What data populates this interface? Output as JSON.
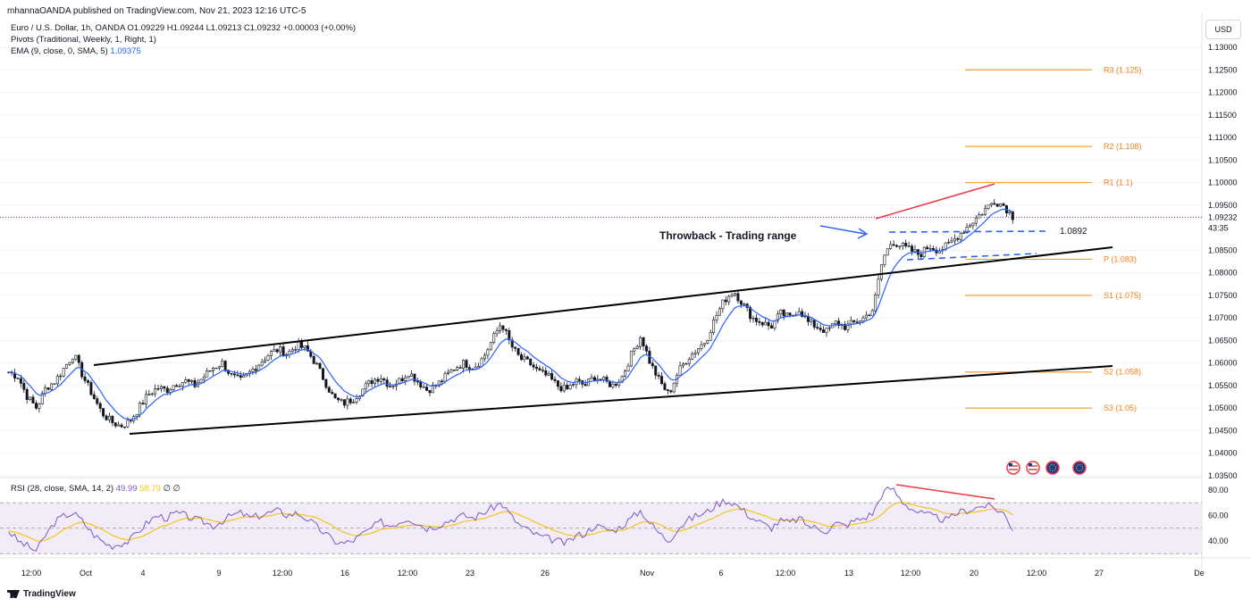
{
  "header": {
    "published": "mhannaOANDA published on TradingView.com, Nov 21, 2023 12:16 UTC-5"
  },
  "legend": {
    "symbol_line": "Euro / U.S. Dollar, 1h, OANDA  O1.09229  H1.09244  L1.09213  C1.09232  +0.00003 (+0.00%)",
    "pivots": "Pivots (Traditional, Weekly, 1, Right, 1)",
    "ema_label": "EMA (9, close, 0, SMA, 5)",
    "ema_value": "1.09375",
    "rsi_label": "RSI (28, close, SMA, 14, 2)",
    "rsi_value1": "49.99",
    "rsi_value2": "58.79",
    "rsi_extra": "∅ ∅"
  },
  "currency": "USD",
  "price_axis": {
    "range": [
      1.035,
      1.1335
    ],
    "ticks": [
      "1.13000",
      "1.12500",
      "1.12000",
      "1.11500",
      "1.11000",
      "1.10500",
      "1.10000",
      "1.09500",
      "1.08500",
      "1.08000",
      "1.07500",
      "1.07000",
      "1.06500",
      "1.06000",
      "1.05500",
      "1.05000",
      "1.04500",
      "1.04000",
      "1.03500"
    ],
    "last_price": "1.09232",
    "countdown": "43:35"
  },
  "rsi_axis": {
    "ticks": [
      "80.00",
      "60.00",
      "40.00"
    ],
    "upper_band": 70,
    "lower_band": 30,
    "mid": 50
  },
  "time_axis": [
    "12:00",
    "Oct",
    "4",
    "9",
    "12:00",
    "16",
    "12:00",
    "23",
    "26",
    "Nov",
    "6",
    "12:00",
    "13",
    "12:00",
    "20",
    "12:00",
    "27",
    "De"
  ],
  "annotations": {
    "throwback": "Throwback - Trading range",
    "level": "1.0892"
  },
  "chart_data": {
    "type": "candlestick",
    "symbol": "Euro / U.S. Dollar",
    "interval": "1h",
    "pivots": [
      {
        "label": "R3 (1.125)",
        "value": 1.125
      },
      {
        "label": "R2 (1.108)",
        "value": 1.108
      },
      {
        "label": "R1 (1.1)",
        "value": 1.1
      },
      {
        "label": "P (1.083)",
        "value": 1.083
      },
      {
        "label": "S1 (1.075)",
        "value": 1.075
      },
      {
        "label": "S2 (1.058)",
        "value": 1.058
      },
      {
        "label": "S3 (1.05)",
        "value": 1.05
      }
    ],
    "price_path": [
      1.058,
      1.057,
      1.0525,
      1.05,
      1.0545,
      1.056,
      1.059,
      1.062,
      1.057,
      1.053,
      1.049,
      1.047,
      1.046,
      1.047,
      1.05,
      1.053,
      1.0545,
      1.054,
      1.0555,
      1.056,
      1.055,
      1.057,
      1.059,
      1.06,
      1.057,
      1.056,
      1.058,
      1.06,
      1.062,
      1.063,
      1.062,
      1.064,
      1.063,
      1.06,
      1.056,
      1.052,
      1.051,
      1.052,
      1.054,
      1.056,
      1.057,
      1.055,
      1.056,
      1.058,
      1.056,
      1.054,
      1.055,
      1.057,
      1.059,
      1.06,
      1.059,
      1.061,
      1.065,
      1.069,
      1.064,
      1.061,
      1.06,
      1.058,
      1.057,
      1.055,
      1.054,
      1.056,
      1.055,
      1.057,
      1.056,
      1.055,
      1.057,
      1.062,
      1.066,
      1.06,
      1.056,
      1.053,
      1.058,
      1.061,
      1.063,
      1.065,
      1.07,
      1.074,
      1.076,
      1.073,
      1.07,
      1.069,
      1.068,
      1.071,
      1.07,
      1.072,
      1.069,
      1.068,
      1.067,
      1.069,
      1.068,
      1.069,
      1.07,
      1.072,
      1.083,
      1.087,
      1.086,
      1.085,
      1.084,
      1.086,
      1.085,
      1.086,
      1.088,
      1.09,
      1.092,
      1.094,
      1.096,
      1.095,
      1.0925
    ],
    "ema_period": 9,
    "rsi_path": [
      48,
      40,
      36,
      32,
      45,
      55,
      60,
      62,
      55,
      46,
      40,
      36,
      38,
      40,
      48,
      55,
      60,
      58,
      62,
      60,
      57,
      55,
      52,
      56,
      60,
      62,
      58,
      60,
      62,
      64,
      60,
      62,
      58,
      52,
      46,
      40,
      38,
      40,
      45,
      50,
      55,
      52,
      55,
      58,
      54,
      50,
      52,
      55,
      58,
      60,
      58,
      62,
      66,
      70,
      60,
      52,
      48,
      44,
      42,
      40,
      38,
      44,
      46,
      52,
      50,
      48,
      52,
      58,
      64,
      54,
      46,
      40,
      50,
      56,
      60,
      62,
      68,
      72,
      70,
      64,
      58,
      54,
      50,
      56,
      54,
      58,
      52,
      50,
      48,
      54,
      52,
      56,
      58,
      62,
      78,
      82,
      72,
      66,
      62,
      60,
      58,
      56,
      62,
      64,
      66,
      68,
      66,
      62,
      50
    ],
    "trendlines": [
      {
        "name": "channel-upper",
        "points": [
          [
            1.0595,
            "Oct 2"
          ],
          [
            1.086,
            "Nov 27"
          ]
        ]
      },
      {
        "name": "channel-lower",
        "points": [
          [
            1.0445,
            "Oct 3"
          ],
          [
            1.059,
            "Nov 27"
          ]
        ]
      }
    ]
  },
  "colors": {
    "candle": "#131722",
    "ema": "#2962ff",
    "pivot": "#f7a32a",
    "pivot_text": "#f57f17",
    "divergence": "#f23645",
    "arrow": "#2962ff",
    "rsi_line": "#7e57c2",
    "rsi_signal": "#f5c518",
    "rsi_band": "#ede7f6",
    "last_price_line": "#9c27b0"
  },
  "icons": [
    "flag-us-icon",
    "flag-us-icon",
    "flag-eu-icon",
    "flag-eu-icon"
  ]
}
